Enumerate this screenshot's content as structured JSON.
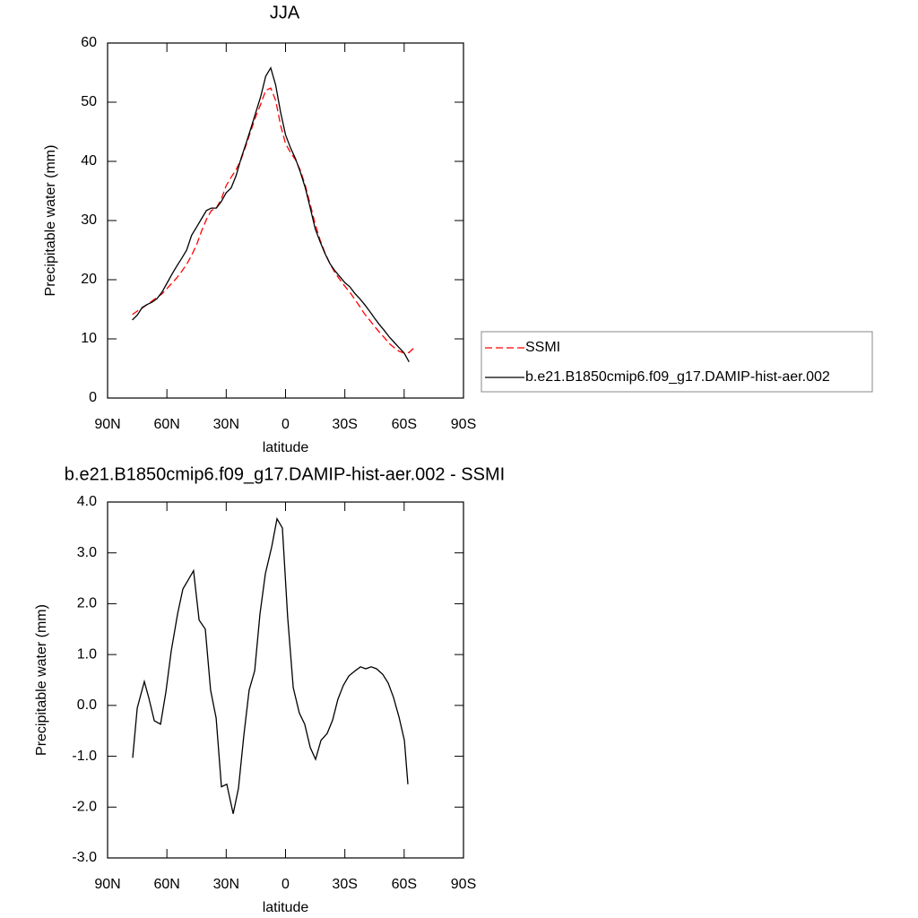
{
  "chart_data": [
    {
      "type": "line",
      "title": "JJA",
      "xlabel": "latitude",
      "ylabel": "Precipitable water (mm)",
      "x": [
        77.5,
        75,
        72.5,
        70,
        67.5,
        65,
        62.5,
        60,
        57.5,
        55,
        52.5,
        50,
        47.5,
        45,
        42.5,
        40,
        37.5,
        35,
        32.5,
        30,
        27.5,
        25,
        22.5,
        20,
        17.5,
        15,
        12.5,
        10,
        7.5,
        5,
        2.5,
        0,
        -2.5,
        -5,
        -7.5,
        -10,
        -12.5,
        -15,
        -17.5,
        -20,
        -22.5,
        -25,
        -27.5,
        -30,
        -32.5,
        -35,
        -37.5,
        -40,
        -42.5,
        -45,
        -47.5,
        -50,
        -52.5,
        -55,
        -57.5,
        -60,
        -62.5,
        -65
      ],
      "series": [
        {
          "name": "SSMI",
          "color": "#ff0000",
          "line_style": "dashed",
          "values": [
            14.1,
            14.7,
            15.2,
            15.8,
            16.4,
            17,
            17.6,
            18.5,
            19.4,
            20.3,
            21.4,
            22.6,
            24.1,
            25.9,
            28.2,
            30.2,
            31.7,
            32.1,
            33.6,
            35.9,
            37.3,
            38.6,
            40.3,
            42.7,
            45.2,
            47.6,
            49.7,
            52,
            52.4,
            50.3,
            46.1,
            43,
            41.5,
            40.3,
            38.5,
            35.9,
            32.7,
            29.4,
            26.7,
            24.5,
            22.7,
            21.2,
            20,
            18.9,
            17.9,
            16.7,
            15.5,
            14.2,
            13.2,
            12.1,
            11.1,
            10.2,
            9.2,
            8.5,
            7.9,
            7.6,
            7.7,
            8.5
          ]
        },
        {
          "name": "b.e21.B1850cmip6.f09_g17.DAMIP-hist-aer.002",
          "color": "#000000",
          "line_style": "solid",
          "values": [
            13.2,
            14,
            15.3,
            15.8,
            16.2,
            16.8,
            17.9,
            19.4,
            20.9,
            22.3,
            23.6,
            25,
            27.5,
            28.9,
            30.3,
            31.7,
            32.1,
            32.1,
            33.2,
            34.7,
            35.5,
            37.6,
            40.5,
            43,
            45.6,
            48.3,
            51,
            54.4,
            55.8,
            52.9,
            48.3,
            44.5,
            42.3,
            40.5,
            38.2,
            35.5,
            32.1,
            28.6,
            26.4,
            24.4,
            22.7,
            21.5,
            20.5,
            19.5,
            18.8,
            17.7,
            16.8,
            15.8,
            14.7,
            13.5,
            12.4,
            11.4,
            10.3,
            9.4,
            8.5,
            7.6,
            6.1,
            null
          ]
        }
      ],
      "xlim": [
        90,
        -90
      ],
      "xticks": [
        {
          "value": 90,
          "label": "90N"
        },
        {
          "value": 60,
          "label": "60N"
        },
        {
          "value": 30,
          "label": "30N"
        },
        0,
        {
          "value": -30,
          "label": "30S"
        },
        {
          "value": -60,
          "label": "60S"
        },
        {
          "value": -90,
          "label": "90S"
        }
      ],
      "ylim": [
        0,
        60
      ],
      "yticks": [
        0,
        10,
        20,
        30,
        40,
        50,
        60
      ],
      "legend": "right"
    },
    {
      "type": "line",
      "title": "b.e21.B1850cmip6.f09_g17.DAMIP-hist-aer.002 - SSMI",
      "xlabel": "latitude",
      "ylabel": "Precipitable water (mm)",
      "color": "#000000",
      "x": [
        77.3,
        75.0,
        71.4,
        69.1,
        66.4,
        63.2,
        60.5,
        57.8,
        54.6,
        51.9,
        49.2,
        46.5,
        43.7,
        40.6,
        37.9,
        35.1,
        32.4,
        29.7,
        26.5,
        23.8,
        21.1,
        18.4,
        15.6,
        12.9,
        10.2,
        7.0,
        4.3,
        1.6,
        -1.1,
        -3.9,
        -7.0,
        -9.7,
        -12.5,
        -15.2,
        -17.9,
        -21.1,
        -23.8,
        -26.5,
        -29.2,
        -32.0,
        -35.2,
        -37.9,
        -40.6,
        -43.3,
        -46.0,
        -49.2,
        -51.9,
        -54.6,
        -57.4,
        -60.1,
        -61.9
      ],
      "values": [
        -1.03,
        -0.05,
        0.47,
        0.14,
        -0.3,
        -0.37,
        0.27,
        1.07,
        1.8,
        2.29,
        2.47,
        2.65,
        1.68,
        1.5,
        0.3,
        -0.25,
        -1.6,
        -1.55,
        -2.13,
        -1.63,
        -0.59,
        0.3,
        0.68,
        1.8,
        2.59,
        3.12,
        3.67,
        3.49,
        1.73,
        0.35,
        -0.15,
        -0.37,
        -0.83,
        -1.06,
        -0.69,
        -0.55,
        -0.29,
        0.12,
        0.39,
        0.58,
        0.68,
        0.76,
        0.72,
        0.76,
        0.72,
        0.61,
        0.44,
        0.16,
        -0.23,
        -0.69,
        -1.55
      ],
      "xlim": [
        90,
        -90
      ],
      "xticks": [
        {
          "value": 90,
          "label": "90N"
        },
        {
          "value": 60,
          "label": "60N"
        },
        {
          "value": 30,
          "label": "30N"
        },
        0,
        {
          "value": -30,
          "label": "30S"
        },
        {
          "value": -60,
          "label": "60S"
        },
        {
          "value": -90,
          "label": "90S"
        }
      ],
      "ylim": [
        -3,
        4
      ],
      "yticks": [
        {
          "value": -3,
          "label": "-3.0"
        },
        {
          "value": -2,
          "label": "-2.0"
        },
        {
          "value": -1,
          "label": "-1.0"
        },
        {
          "value": 0,
          "label": "0.0"
        },
        {
          "value": 1,
          "label": "1.0"
        },
        {
          "value": 2,
          "label": "2.0"
        },
        {
          "value": 3,
          "label": "3.0"
        },
        {
          "value": 4,
          "label": "4.0"
        }
      ]
    }
  ]
}
